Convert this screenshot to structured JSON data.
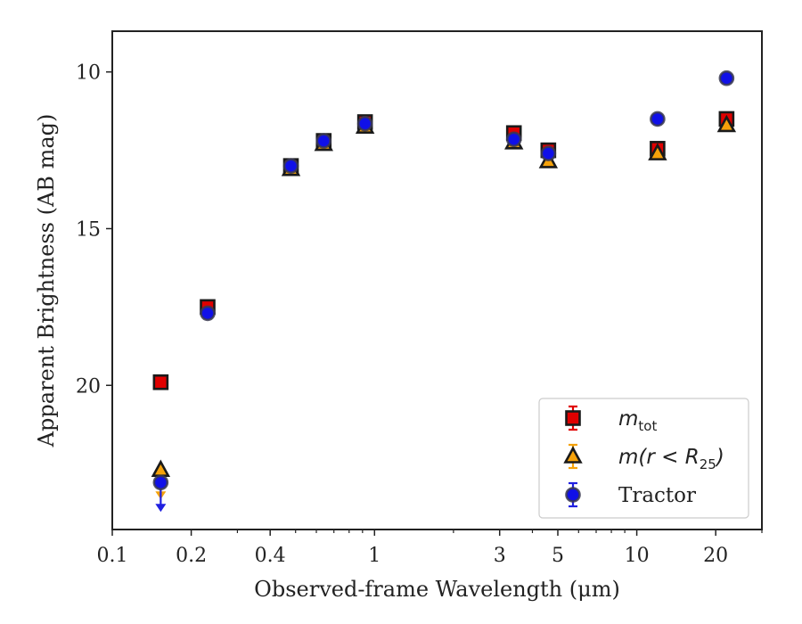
{
  "chart_data": {
    "type": "scatter",
    "xlabel": "Observed-frame Wavelength (μm)",
    "ylabel": "Apparent Brightness (AB mag)",
    "xscale": "log",
    "xlim": [
      0.1,
      30
    ],
    "ylim": [
      24.6,
      8.7
    ],
    "y_inverted": true,
    "xticks": [
      {
        "value": 0.1,
        "label": "0.1"
      },
      {
        "value": 0.2,
        "label": "0.2"
      },
      {
        "value": 0.4,
        "label": "0.4"
      },
      {
        "value": 1,
        "label": "1"
      },
      {
        "value": 3,
        "label": "3"
      },
      {
        "value": 5,
        "label": "5"
      },
      {
        "value": 10,
        "label": "10"
      },
      {
        "value": 20,
        "label": "20"
      }
    ],
    "yticks": [
      {
        "value": 10,
        "label": "10"
      },
      {
        "value": 15,
        "label": "15"
      },
      {
        "value": 20,
        "label": "20"
      }
    ],
    "legend_position": "lower-right",
    "series": [
      {
        "name": "m_tot",
        "label_main": "m",
        "label_sub": "tot",
        "marker": "square",
        "color": "#e00000",
        "edge": "#1a1a1a",
        "errcolor": "#e00000",
        "points": [
          {
            "x": 0.153,
            "y": 19.9
          },
          {
            "x": 0.231,
            "y": 17.5
          },
          {
            "x": 0.48,
            "y": 13.0
          },
          {
            "x": 0.64,
            "y": 12.2
          },
          {
            "x": 0.92,
            "y": 11.6
          },
          {
            "x": 3.4,
            "y": 11.95
          },
          {
            "x": 4.6,
            "y": 12.5
          },
          {
            "x": 12.0,
            "y": 12.45
          },
          {
            "x": 22.0,
            "y": 11.5
          }
        ]
      },
      {
        "name": "m(r < R25)",
        "label_main": "m(r < R",
        "label_sub": "25",
        "label_tail": ")",
        "marker": "triangle",
        "color": "#f5a20a",
        "edge": "#1a1a1a",
        "errcolor": "#f5a20a",
        "points": [
          {
            "x": 0.153,
            "y": 22.7,
            "upper_limit": true
          },
          {
            "x": 0.48,
            "y": 13.1
          },
          {
            "x": 0.64,
            "y": 12.3
          },
          {
            "x": 0.92,
            "y": 11.75
          },
          {
            "x": 3.4,
            "y": 12.25
          },
          {
            "x": 4.6,
            "y": 12.85
          },
          {
            "x": 12.0,
            "y": 12.6
          },
          {
            "x": 22.0,
            "y": 11.7
          }
        ]
      },
      {
        "name": "Tractor",
        "label_main": "Tractor",
        "marker": "circle",
        "color": "#1010e8",
        "edge": "#3a3a50",
        "errcolor": "#2020e0",
        "points": [
          {
            "x": 0.153,
            "y": 23.1,
            "upper_limit": true
          },
          {
            "x": 0.231,
            "y": 17.7
          },
          {
            "x": 0.48,
            "y": 13.0
          },
          {
            "x": 0.64,
            "y": 12.2
          },
          {
            "x": 0.92,
            "y": 11.65
          },
          {
            "x": 3.4,
            "y": 12.15
          },
          {
            "x": 4.6,
            "y": 12.6
          },
          {
            "x": 12.0,
            "y": 11.5
          },
          {
            "x": 22.0,
            "y": 10.2
          }
        ]
      }
    ]
  }
}
